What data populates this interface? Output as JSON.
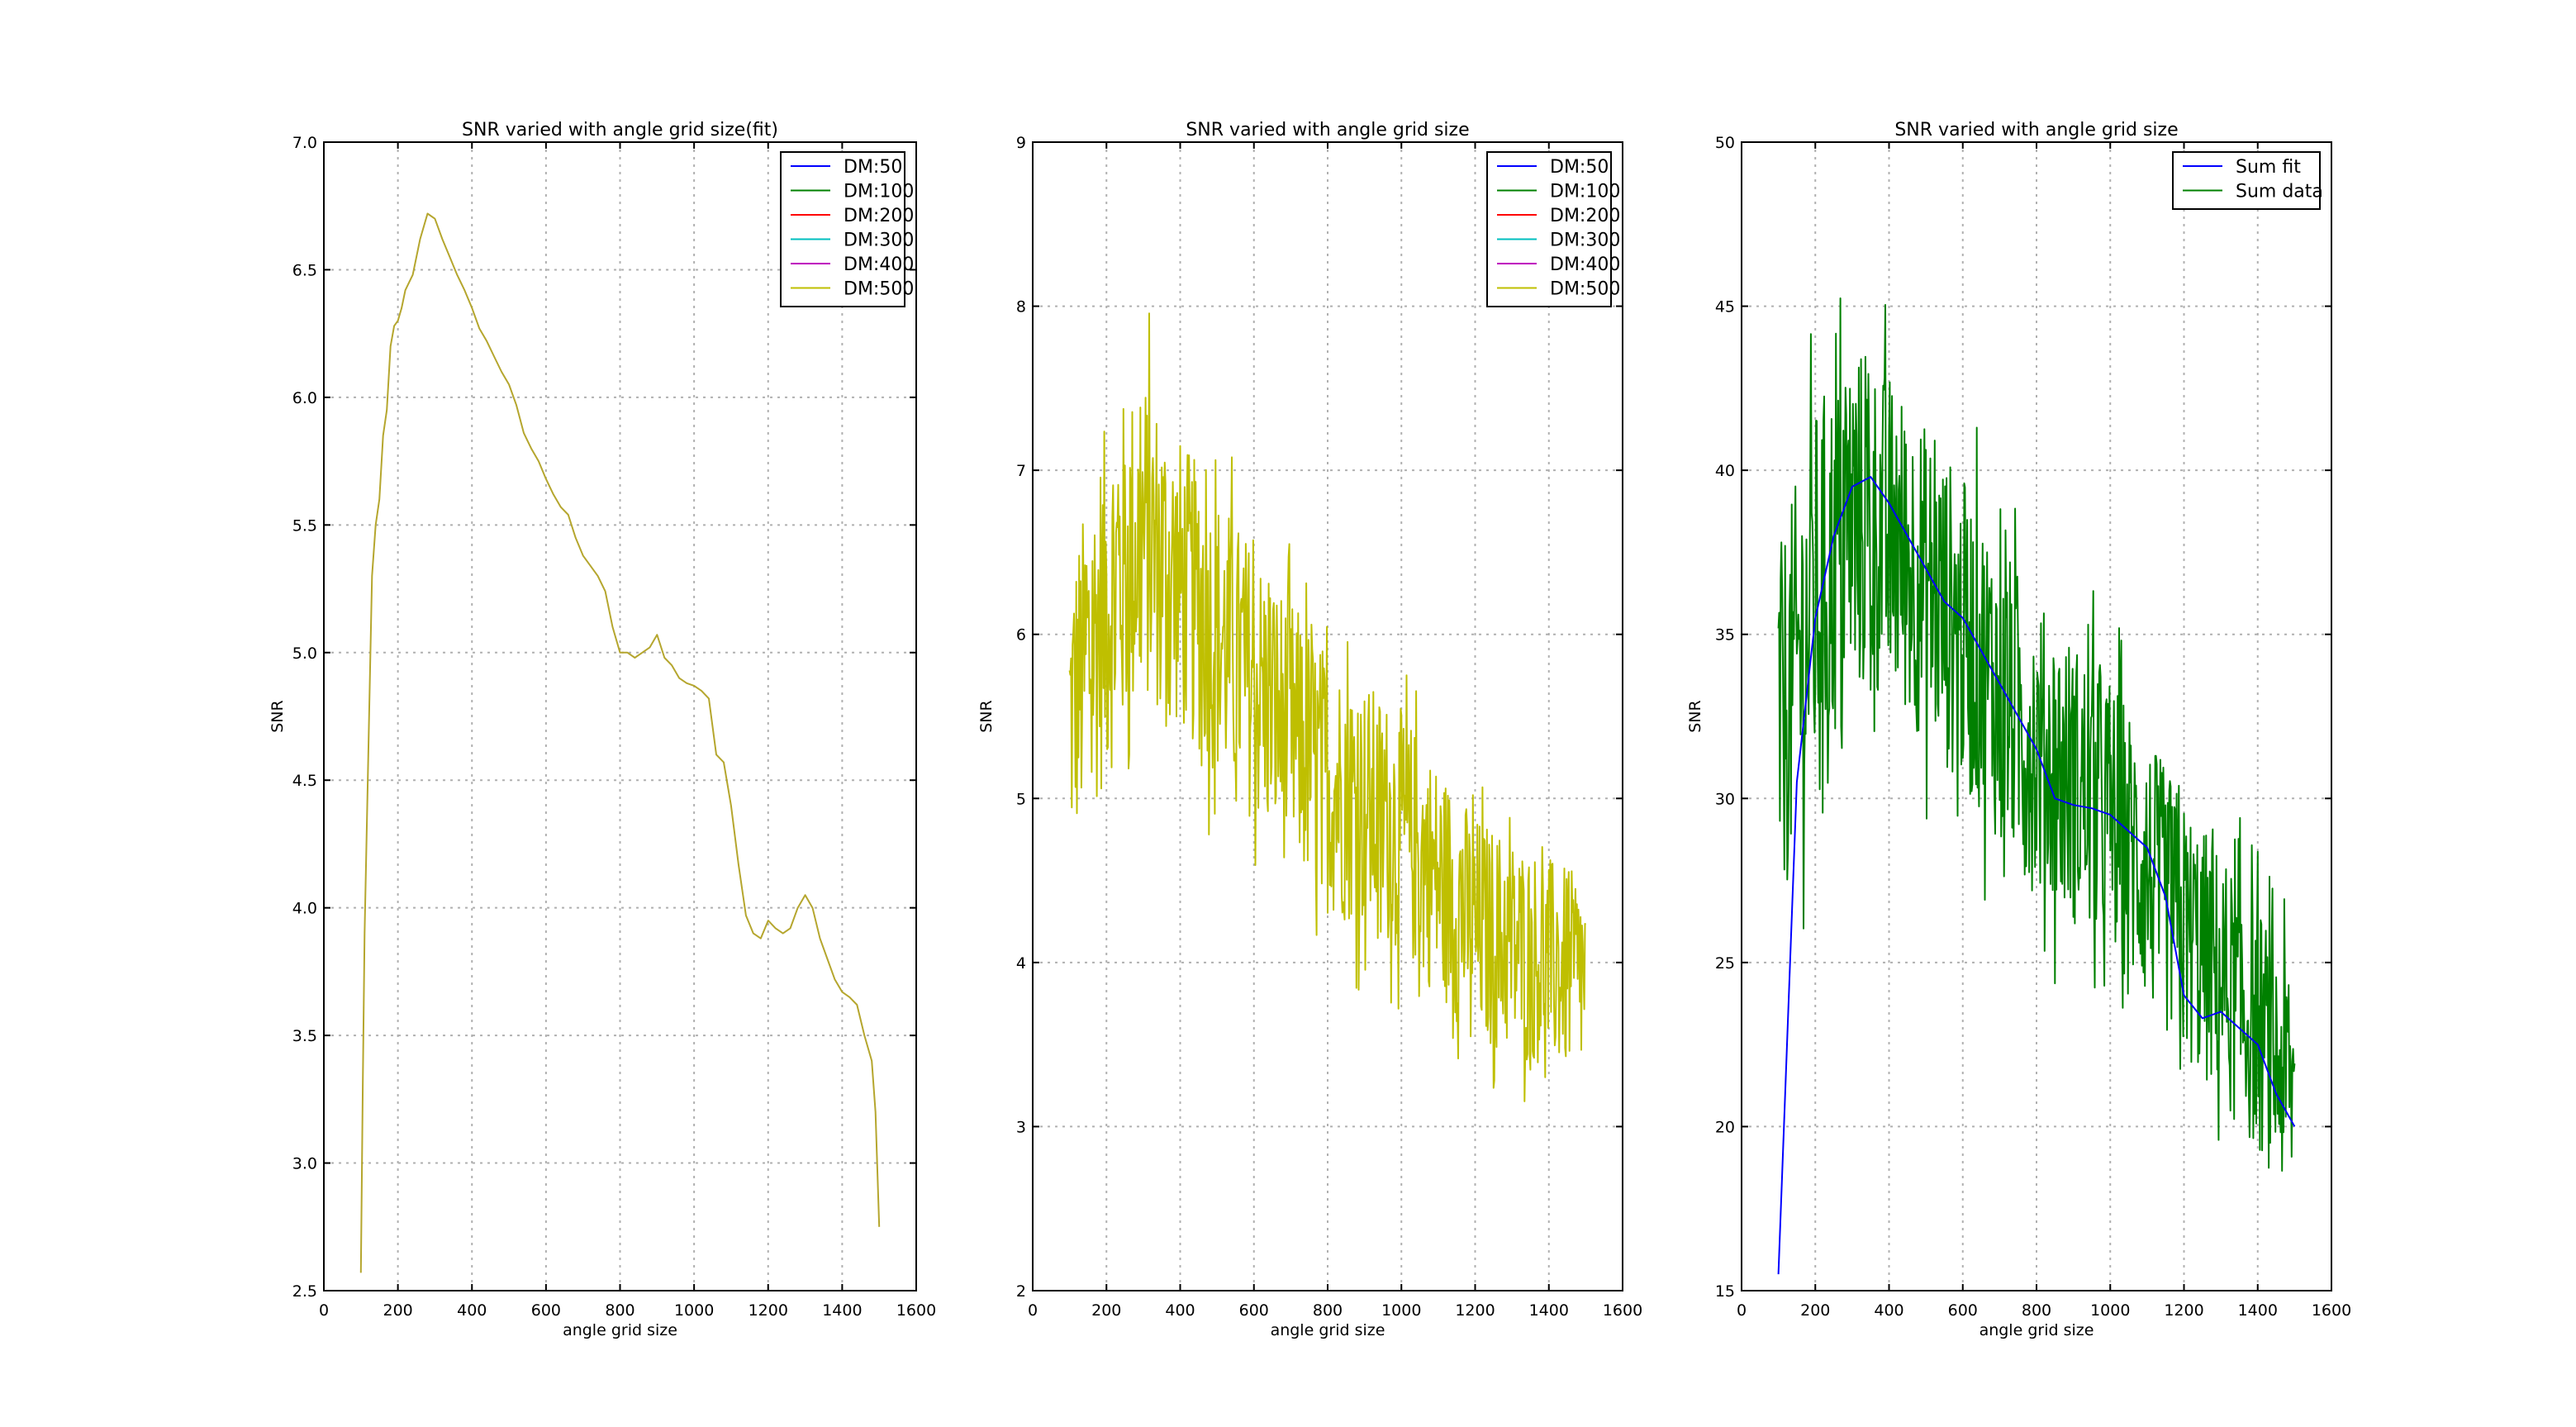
{
  "chart_data": [
    {
      "type": "line",
      "title": "SNR varied with angle grid size(fit)",
      "xlabel": "angle grid size",
      "ylabel": "SNR",
      "xlim": [
        0,
        1600
      ],
      "ylim": [
        2.5,
        7.0
      ],
      "xticks": [
        "0",
        "200",
        "400",
        "600",
        "800",
        "1000",
        "1200",
        "1400",
        "1600"
      ],
      "yticks": [
        "2.5",
        "3.0",
        "3.5",
        "4.0",
        "4.5",
        "5.0",
        "5.5",
        "6.0",
        "6.5",
        "7.0"
      ],
      "grid": true,
      "legend": "top-right",
      "series": [
        {
          "name": "DM:50",
          "color": "#0000ff"
        },
        {
          "name": "DM:100",
          "color": "#008000"
        },
        {
          "name": "DM:200",
          "color": "#ff0000"
        },
        {
          "name": "DM:300",
          "color": "#00bfbf"
        },
        {
          "name": "DM:400",
          "color": "#bf00bf"
        },
        {
          "name": "DM:500",
          "color": "#bfbf00"
        }
      ],
      "line": {
        "color": "#b5a62e",
        "x": [
          100,
          105,
          110,
          120,
          130,
          140,
          150,
          160,
          170,
          180,
          190,
          200,
          210,
          220,
          240,
          260,
          280,
          300,
          320,
          340,
          360,
          380,
          400,
          420,
          440,
          460,
          480,
          500,
          520,
          540,
          560,
          580,
          600,
          620,
          640,
          660,
          680,
          700,
          720,
          740,
          760,
          780,
          800,
          820,
          840,
          860,
          880,
          900,
          920,
          940,
          960,
          980,
          1000,
          1020,
          1040,
          1060,
          1080,
          1100,
          1120,
          1140,
          1160,
          1180,
          1200,
          1220,
          1240,
          1260,
          1280,
          1300,
          1320,
          1340,
          1360,
          1380,
          1400,
          1420,
          1440,
          1460,
          1480,
          1490,
          1500
        ],
        "y": [
          2.57,
          3.3,
          3.9,
          4.6,
          5.3,
          5.5,
          5.6,
          5.85,
          5.95,
          6.2,
          6.28,
          6.3,
          6.35,
          6.42,
          6.48,
          6.62,
          6.72,
          6.7,
          6.62,
          6.55,
          6.48,
          6.42,
          6.35,
          6.27,
          6.22,
          6.16,
          6.1,
          6.05,
          5.97,
          5.86,
          5.8,
          5.75,
          5.68,
          5.62,
          5.57,
          5.54,
          5.45,
          5.38,
          5.34,
          5.3,
          5.24,
          5.1,
          5.0,
          5.0,
          4.98,
          5.0,
          5.02,
          5.07,
          4.98,
          4.95,
          4.9,
          4.88,
          4.87,
          4.85,
          4.82,
          4.6,
          4.57,
          4.4,
          4.17,
          3.97,
          3.9,
          3.88,
          3.95,
          3.92,
          3.9,
          3.92,
          4.0,
          4.05,
          4.0,
          3.88,
          3.8,
          3.72,
          3.67,
          3.65,
          3.62,
          3.5,
          3.4,
          3.2,
          2.75
        ]
      }
    },
    {
      "type": "line",
      "title": "SNR varied with angle grid size",
      "xlabel": "angle grid size",
      "ylabel": "SNR",
      "xlim": [
        0,
        1600
      ],
      "ylim": [
        2,
        9
      ],
      "xticks": [
        "0",
        "200",
        "400",
        "600",
        "800",
        "1000",
        "1200",
        "1400",
        "1600"
      ],
      "yticks": [
        "2",
        "3",
        "4",
        "5",
        "6",
        "7",
        "8",
        "9"
      ],
      "grid": true,
      "legend": "top-right",
      "series": [
        {
          "name": "DM:50",
          "color": "#0000ff"
        },
        {
          "name": "DM:100",
          "color": "#008000"
        },
        {
          "name": "DM:200",
          "color": "#ff0000"
        },
        {
          "name": "DM:300",
          "color": "#00bfbf"
        },
        {
          "name": "DM:400",
          "color": "#bf00bf"
        },
        {
          "name": "DM:500",
          "color": "#bfbf00"
        }
      ],
      "noisy": {
        "color": "#bfbf00",
        "x_range": [
          100,
          1500
        ],
        "trend_x": [
          100,
          200,
          300,
          400,
          600,
          800,
          1000,
          1200,
          1400,
          1500
        ],
        "trend_y": [
          5.5,
          6.2,
          6.6,
          6.3,
          5.7,
          5.1,
          4.8,
          4.2,
          4.0,
          3.9
        ],
        "amplitude": [
          0.9,
          1.1,
          1.0,
          0.9,
          0.85,
          0.8,
          0.75,
          0.7,
          0.65,
          0.6
        ],
        "min": 2.57,
        "max": 8.08
      }
    },
    {
      "type": "line",
      "title": "SNR varied with angle grid size",
      "xlabel": "angle grid size",
      "ylabel": "SNR",
      "xlim": [
        0,
        1600
      ],
      "ylim": [
        15,
        50
      ],
      "xticks": [
        "0",
        "200",
        "400",
        "600",
        "800",
        "1000",
        "1200",
        "1400",
        "1600"
      ],
      "yticks": [
        "15",
        "20",
        "25",
        "30",
        "35",
        "40",
        "45",
        "50"
      ],
      "grid": true,
      "legend": "top-right",
      "series": [
        {
          "name": "Sum fit",
          "color": "#0000ff"
        },
        {
          "name": "Sum data",
          "color": "#008000"
        }
      ],
      "fit": {
        "color": "#0000ff",
        "x": [
          100,
          150,
          200,
          250,
          300,
          350,
          400,
          450,
          500,
          550,
          600,
          650,
          700,
          750,
          800,
          850,
          900,
          950,
          1000,
          1050,
          1100,
          1150,
          1200,
          1250,
          1300,
          1350,
          1400,
          1450,
          1500
        ],
        "y": [
          15.5,
          30.5,
          35.5,
          38.0,
          39.5,
          39.8,
          39.0,
          38.0,
          37.0,
          36.0,
          35.5,
          34.5,
          33.5,
          32.5,
          31.5,
          30.0,
          29.8,
          29.7,
          29.5,
          29.0,
          28.5,
          27.0,
          24.0,
          23.3,
          23.5,
          23.0,
          22.5,
          21.0,
          20.0
        ]
      },
      "noisy": {
        "color": "#008000",
        "x_range": [
          100,
          1500
        ],
        "trend_x": [
          100,
          200,
          300,
          400,
          600,
          800,
          1000,
          1200,
          1400,
          1500
        ],
        "trend_y": [
          32,
          36,
          38.5,
          38,
          35,
          31.5,
          29.5,
          26,
          23,
          21
        ],
        "amplitude": [
          5.5,
          6.0,
          5.5,
          5.0,
          4.8,
          4.5,
          4.3,
          4.0,
          3.8,
          3.5
        ],
        "min": 15.4,
        "max": 48.5
      }
    }
  ]
}
